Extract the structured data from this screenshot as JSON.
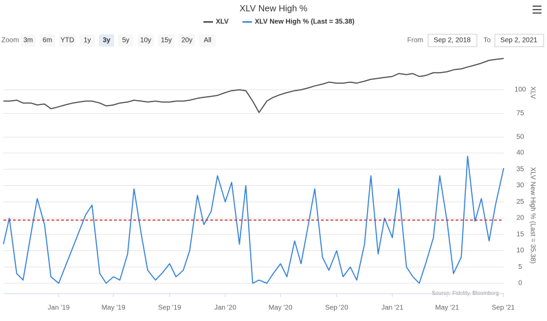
{
  "chart_data": {
    "type": "line",
    "title": "XLV New High %",
    "x": [
      "2018-09-02",
      "2018-09-15",
      "2018-10-01",
      "2018-10-15",
      "2018-11-01",
      "2018-11-15",
      "2018-12-01",
      "2018-12-15",
      "2019-01-01",
      "2019-01-15",
      "2019-02-01",
      "2019-02-15",
      "2019-03-01",
      "2019-03-15",
      "2019-04-01",
      "2019-04-15",
      "2019-05-01",
      "2019-05-15",
      "2019-06-01",
      "2019-06-15",
      "2019-07-01",
      "2019-07-15",
      "2019-08-01",
      "2019-08-15",
      "2019-09-01",
      "2019-09-15",
      "2019-10-01",
      "2019-10-15",
      "2019-11-01",
      "2019-11-15",
      "2019-12-01",
      "2019-12-15",
      "2020-01-01",
      "2020-01-15",
      "2020-02-01",
      "2020-02-15",
      "2020-03-01",
      "2020-03-15",
      "2020-04-01",
      "2020-04-15",
      "2020-05-01",
      "2020-05-15",
      "2020-06-01",
      "2020-06-15",
      "2020-07-01",
      "2020-07-15",
      "2020-08-01",
      "2020-08-15",
      "2020-09-01",
      "2020-09-15",
      "2020-10-01",
      "2020-10-15",
      "2020-11-01",
      "2020-11-15",
      "2020-12-01",
      "2020-12-15",
      "2021-01-01",
      "2021-01-15",
      "2021-02-01",
      "2021-02-15",
      "2021-03-01",
      "2021-03-15",
      "2021-04-01",
      "2021-04-15",
      "2021-05-01",
      "2021-05-15",
      "2021-06-01",
      "2021-06-15",
      "2021-07-01",
      "2021-07-15",
      "2021-08-01",
      "2021-08-15",
      "2021-09-02"
    ],
    "xlim": [
      "2018-09-02",
      "2021-09-02"
    ],
    "xticks": [
      {
        "value": "2019-01-01",
        "label": "Jan '19"
      },
      {
        "value": "2019-05-01",
        "label": "May '19"
      },
      {
        "value": "2019-09-01",
        "label": "Sep '19"
      },
      {
        "value": "2020-01-01",
        "label": "Jan '20"
      },
      {
        "value": "2020-05-01",
        "label": "May '20"
      },
      {
        "value": "2020-09-01",
        "label": "Sep '20"
      },
      {
        "value": "2021-01-01",
        "label": "Jan '21"
      },
      {
        "value": "2021-05-01",
        "label": "May '21"
      },
      {
        "value": "2021-09-01",
        "label": "Sep '21"
      }
    ],
    "series": [
      {
        "name": "XLV",
        "color": "#434348",
        "axis": "y",
        "values": [
          88,
          88,
          89,
          86,
          86,
          84,
          85,
          80,
          82,
          84,
          86,
          87,
          88,
          88,
          86,
          83,
          84,
          86,
          87,
          89,
          88,
          87,
          88,
          87,
          87,
          88,
          88,
          89,
          91,
          92,
          93,
          94,
          97,
          99,
          100,
          99,
          88,
          76,
          88,
          92,
          95,
          97,
          99,
          100,
          102,
          104,
          106,
          108,
          107,
          107,
          108,
          107,
          109,
          111,
          112,
          113,
          114,
          117,
          116,
          117,
          114,
          115,
          118,
          118,
          119,
          121,
          122,
          124,
          126,
          128,
          131,
          132,
          133
        ]
      },
      {
        "name": "XLV New High % (Last = 35.38)",
        "color": "#2f7ed8",
        "axis": "y2",
        "values": [
          12,
          20,
          3,
          1,
          15,
          26,
          18,
          2,
          0,
          5,
          11,
          16,
          21,
          24,
          3,
          0,
          2,
          1,
          9,
          29,
          15,
          4,
          1,
          3,
          6,
          2,
          4,
          10,
          27,
          18,
          22,
          33,
          25,
          31,
          12,
          30,
          0,
          1,
          0,
          3,
          6,
          2,
          13,
          6,
          18,
          29,
          8,
          4,
          10,
          2,
          5,
          1,
          12,
          33,
          9,
          20,
          14,
          29,
          5,
          2,
          0,
          6,
          14,
          33,
          19,
          3,
          8,
          39,
          19,
          26,
          13,
          24,
          35.38
        ]
      }
    ],
    "ylabel": "XLV",
    "ylim": [
      50,
      144
    ],
    "yticks": [
      50,
      75,
      100
    ],
    "y2label": "XLV New High % (Last = 35.38)",
    "y2lim": [
      -2.1,
      43.8
    ],
    "y2ticks": [
      0,
      5,
      10,
      15,
      20,
      25,
      30,
      35,
      40
    ],
    "reference_line": {
      "value": 19.4,
      "color": "#d62728",
      "axis": "y2"
    },
    "credits": "Source: Fidelity, Bloomberg"
  },
  "range_selector": {
    "zoom_label": "Zoom",
    "buttons": [
      "3m",
      "6m",
      "YTD",
      "1y",
      "3y",
      "5y",
      "10y",
      "15y",
      "20y",
      "All"
    ],
    "selected": "3y",
    "from_label": "From",
    "from_value": "Sep 2, 2018",
    "to_label": "To",
    "to_value": "Sep 2, 2021"
  }
}
